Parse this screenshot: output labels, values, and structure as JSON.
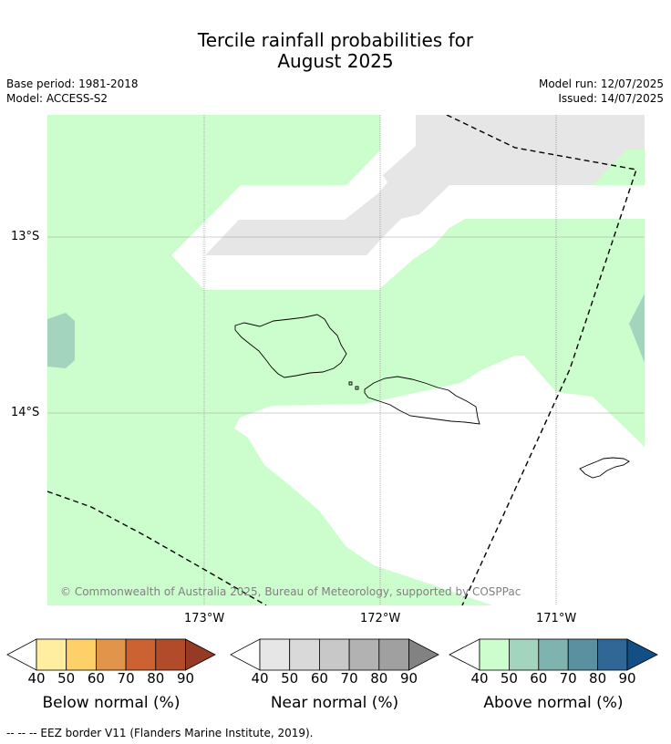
{
  "title_line1": "Tercile rainfall probabilities for",
  "title_line2": "August 2025",
  "base_period": "Base period: 1981-2018",
  "model": "Model: ACCESS-S2",
  "model_run": "Model run: 12/07/2025",
  "issued": "Issued: 14/07/2025",
  "lat_labels": [
    "13°S",
    "14°S"
  ],
  "lon_labels": [
    "173°W",
    "172°W",
    "171°W"
  ],
  "copyright": "© Commonwealth of Australia 2025, Bureau of Meteorology, supported by COSPPac",
  "footer": "--  --  -- EEZ border V11 (Flanders Marine Institute, 2019).",
  "colors": {
    "above_40": "#ccfdcc",
    "above_50": "#a3d4bd",
    "near_40": "#e6e6e6",
    "coast": "#000000",
    "grid": "#b0b0b0"
  },
  "colorbars": [
    {
      "title": "Below normal (%)",
      "ticks": [
        "40",
        "50",
        "60",
        "70",
        "80",
        "90"
      ],
      "colors": [
        "#ffeda0",
        "#fed06a",
        "#e0954a",
        "#cc6232",
        "#b24b2a",
        "#943a25"
      ],
      "low_color": "#ffffff",
      "high_color": "#943a25"
    },
    {
      "title": "Near normal (%)",
      "ticks": [
        "40",
        "50",
        "60",
        "70",
        "80",
        "90"
      ],
      "colors": [
        "#e6e6e6",
        "#d9d9d9",
        "#c8c8c8",
        "#b2b2b2",
        "#a0a0a0",
        "#828282"
      ],
      "low_color": "#ffffff",
      "high_color": "#828282"
    },
    {
      "title": "Above normal (%)",
      "ticks": [
        "40",
        "50",
        "60",
        "70",
        "80",
        "90"
      ],
      "colors": [
        "#ccfdcc",
        "#a3d4bd",
        "#7eb3b0",
        "#5a90a0",
        "#306796",
        "#124f85"
      ],
      "low_color": "#ffffff",
      "high_color": "#124f85"
    }
  ]
}
